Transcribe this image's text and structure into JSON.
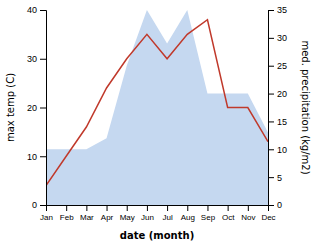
{
  "chart_data": {
    "type": "line",
    "x_label": "date (month)",
    "y_label": "max temp (C)",
    "y2_label": "med. precipitation (kg/m2)",
    "categories": [
      "Jan",
      "Feb",
      "Mar",
      "Apr",
      "May",
      "Jun",
      "Jul",
      "Aug",
      "Sep",
      "Oct",
      "Nov",
      "Dec"
    ],
    "series": [
      {
        "type": "area",
        "axis": "y2",
        "color": "#c5d8f0",
        "values": [
          10,
          10,
          10,
          12,
          25,
          35,
          29,
          35,
          20,
          20,
          20,
          13
        ]
      },
      {
        "type": "line",
        "color": "#c0392b",
        "values": [
          4,
          10,
          16,
          24,
          30,
          35,
          30,
          35,
          38,
          20,
          20,
          13
        ]
      }
    ],
    "ylim": [
      0,
      40
    ],
    "yticks": [
      0,
      10,
      20,
      30,
      40
    ],
    "y2lim": [
      0,
      35
    ],
    "y2ticks": [
      0,
      5,
      10,
      15,
      20,
      25,
      30,
      35
    ],
    "grid": false
  }
}
